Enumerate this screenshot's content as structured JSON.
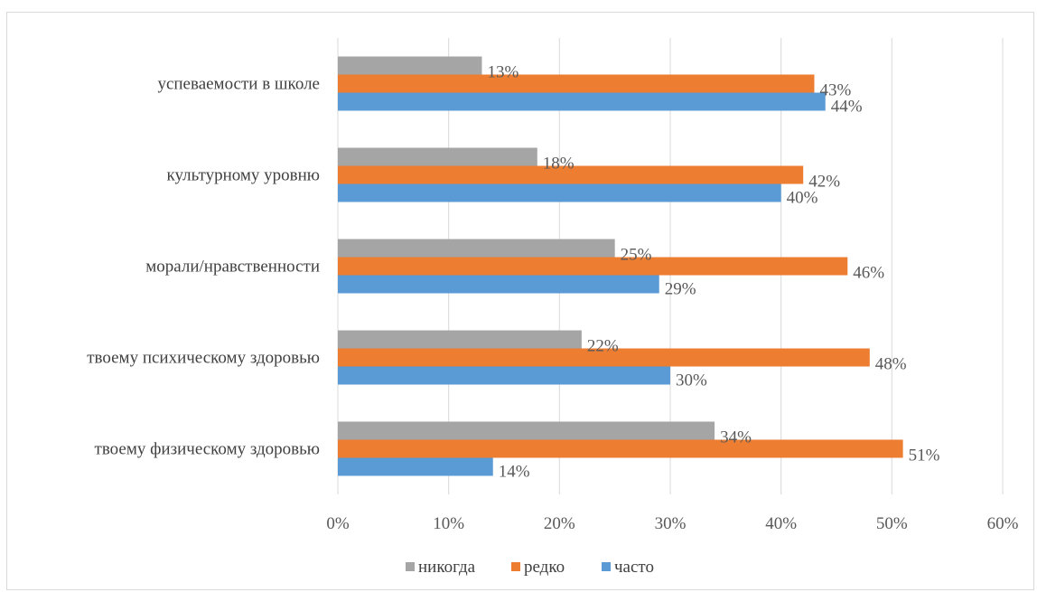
{
  "chart_data": {
    "type": "bar",
    "orientation": "horizontal",
    "categories": [
      "успеваемости в школе",
      "культурному уровню",
      "морали/нравственности",
      "твоему психическому здоровью",
      "твоему физическому здоровью"
    ],
    "series": [
      {
        "name": "никогда",
        "color": "#a5a5a5",
        "values": [
          13,
          18,
          25,
          22,
          34
        ],
        "labels": [
          "13%",
          "18%",
          "25%",
          "22%",
          "34%"
        ]
      },
      {
        "name": "редко",
        "color": "#ed7d31",
        "values": [
          43,
          42,
          46,
          48,
          51
        ],
        "labels": [
          "43%",
          "42%",
          "46%",
          "48%",
          "51%"
        ]
      },
      {
        "name": "часто",
        "color": "#5b9bd5",
        "values": [
          44,
          40,
          29,
          30,
          14
        ],
        "labels": [
          "44%",
          "40%",
          "29%",
          "30%",
          "14%"
        ]
      }
    ],
    "xlim": [
      0,
      60
    ],
    "x_ticks": [
      "0%",
      "10%",
      "20%",
      "30%",
      "40%",
      "50%",
      "60%"
    ],
    "grid": true,
    "legend_position": "bottom"
  }
}
